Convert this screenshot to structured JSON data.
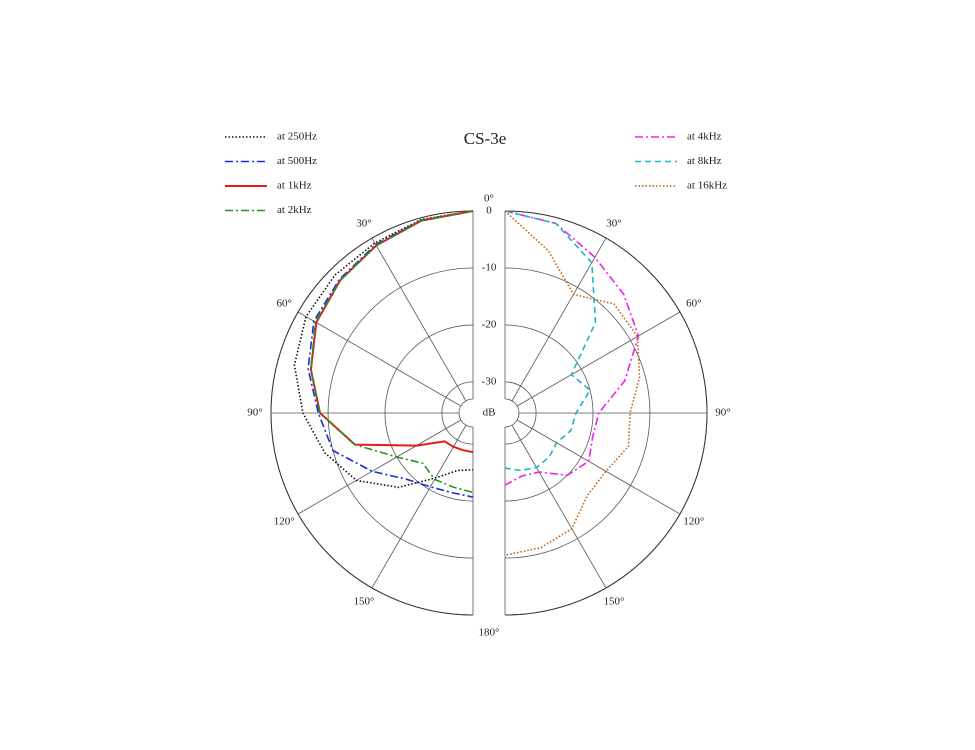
{
  "chart_data": {
    "type": "polar",
    "title": "CS-3e",
    "theta": [
      0,
      15,
      30,
      45,
      60,
      75,
      90,
      105,
      120,
      135,
      150,
      165,
      180
    ],
    "thetaticks": [
      {
        "value": 0,
        "label": "0°"
      },
      {
        "value": 30,
        "label": "30°"
      },
      {
        "value": 60,
        "label": "60°"
      },
      {
        "value": 90,
        "label": "90°"
      },
      {
        "value": 120,
        "label": "120°"
      },
      {
        "value": 150,
        "label": "150°"
      },
      {
        "value": 180,
        "label": "180°"
      }
    ],
    "rlim": [
      -33,
      0
    ],
    "rticks": [
      0,
      -10,
      -20,
      -30
    ],
    "r_label": "dB",
    "series": [
      {
        "name": "at 250Hz",
        "color": "#111111",
        "linestyle": "dotted",
        "side": "left",
        "values": [
          0,
          -0.3,
          -1,
          -1.2,
          -1.6,
          -3,
          -5.6,
          -8.5,
          -11.8,
          -17,
          -22.3,
          -25,
          -25.5
        ]
      },
      {
        "name": "at 500Hz",
        "color": "#1a2be0",
        "linestyle": "dashdot",
        "side": "left",
        "values": [
          0,
          -0.4,
          -1.3,
          -2.3,
          -3.2,
          -5.5,
          -8.3,
          -10,
          -15,
          -19,
          -20.5,
          -21,
          -20.7
        ]
      },
      {
        "name": "at 1kHz",
        "color": "#e8191b",
        "linestyle": "solid",
        "side": "left",
        "values": [
          0,
          -0.5,
          -1.5,
          -2.5,
          -3.7,
          -6,
          -8.6,
          -14,
          -24,
          -28.4,
          -28.6,
          -28.7,
          -28.6
        ]
      },
      {
        "name": "at 2kHz",
        "color": "#1a9a1a",
        "linestyle": "dashdot",
        "side": "left",
        "values": [
          0,
          -0.5,
          -1.5,
          -2.5,
          -3.5,
          -6,
          -8.6,
          -14,
          -20,
          -23,
          -22,
          -22,
          -21.5
        ]
      },
      {
        "name": "at 4kHz",
        "color": "#ee22ee",
        "linestyle": "dashdot",
        "side": "right",
        "values": [
          0,
          -1,
          -3.9,
          -6,
          -8.4,
          -13.7,
          -19,
          -19.5,
          -18.5,
          -20,
          -23.5,
          -24,
          -22.8
        ]
      },
      {
        "name": "at 8kHz",
        "color": "#19b8c4",
        "linestyle": "dashed",
        "side": "right",
        "values": [
          0,
          -1,
          -5,
          -13,
          -22,
          -20,
          -23,
          -23.5,
          -25,
          -24.5,
          -24.4,
          -25,
          -25.8
        ]
      },
      {
        "name": "at 16kHz",
        "color": "#c06010",
        "linestyle": "dotted",
        "side": "right",
        "values": [
          0,
          -6,
          -11.4,
          -8.4,
          -8.6,
          -11,
          -13.5,
          -13,
          -15,
          -15,
          -12,
          -11,
          -10.5
        ]
      }
    ]
  }
}
